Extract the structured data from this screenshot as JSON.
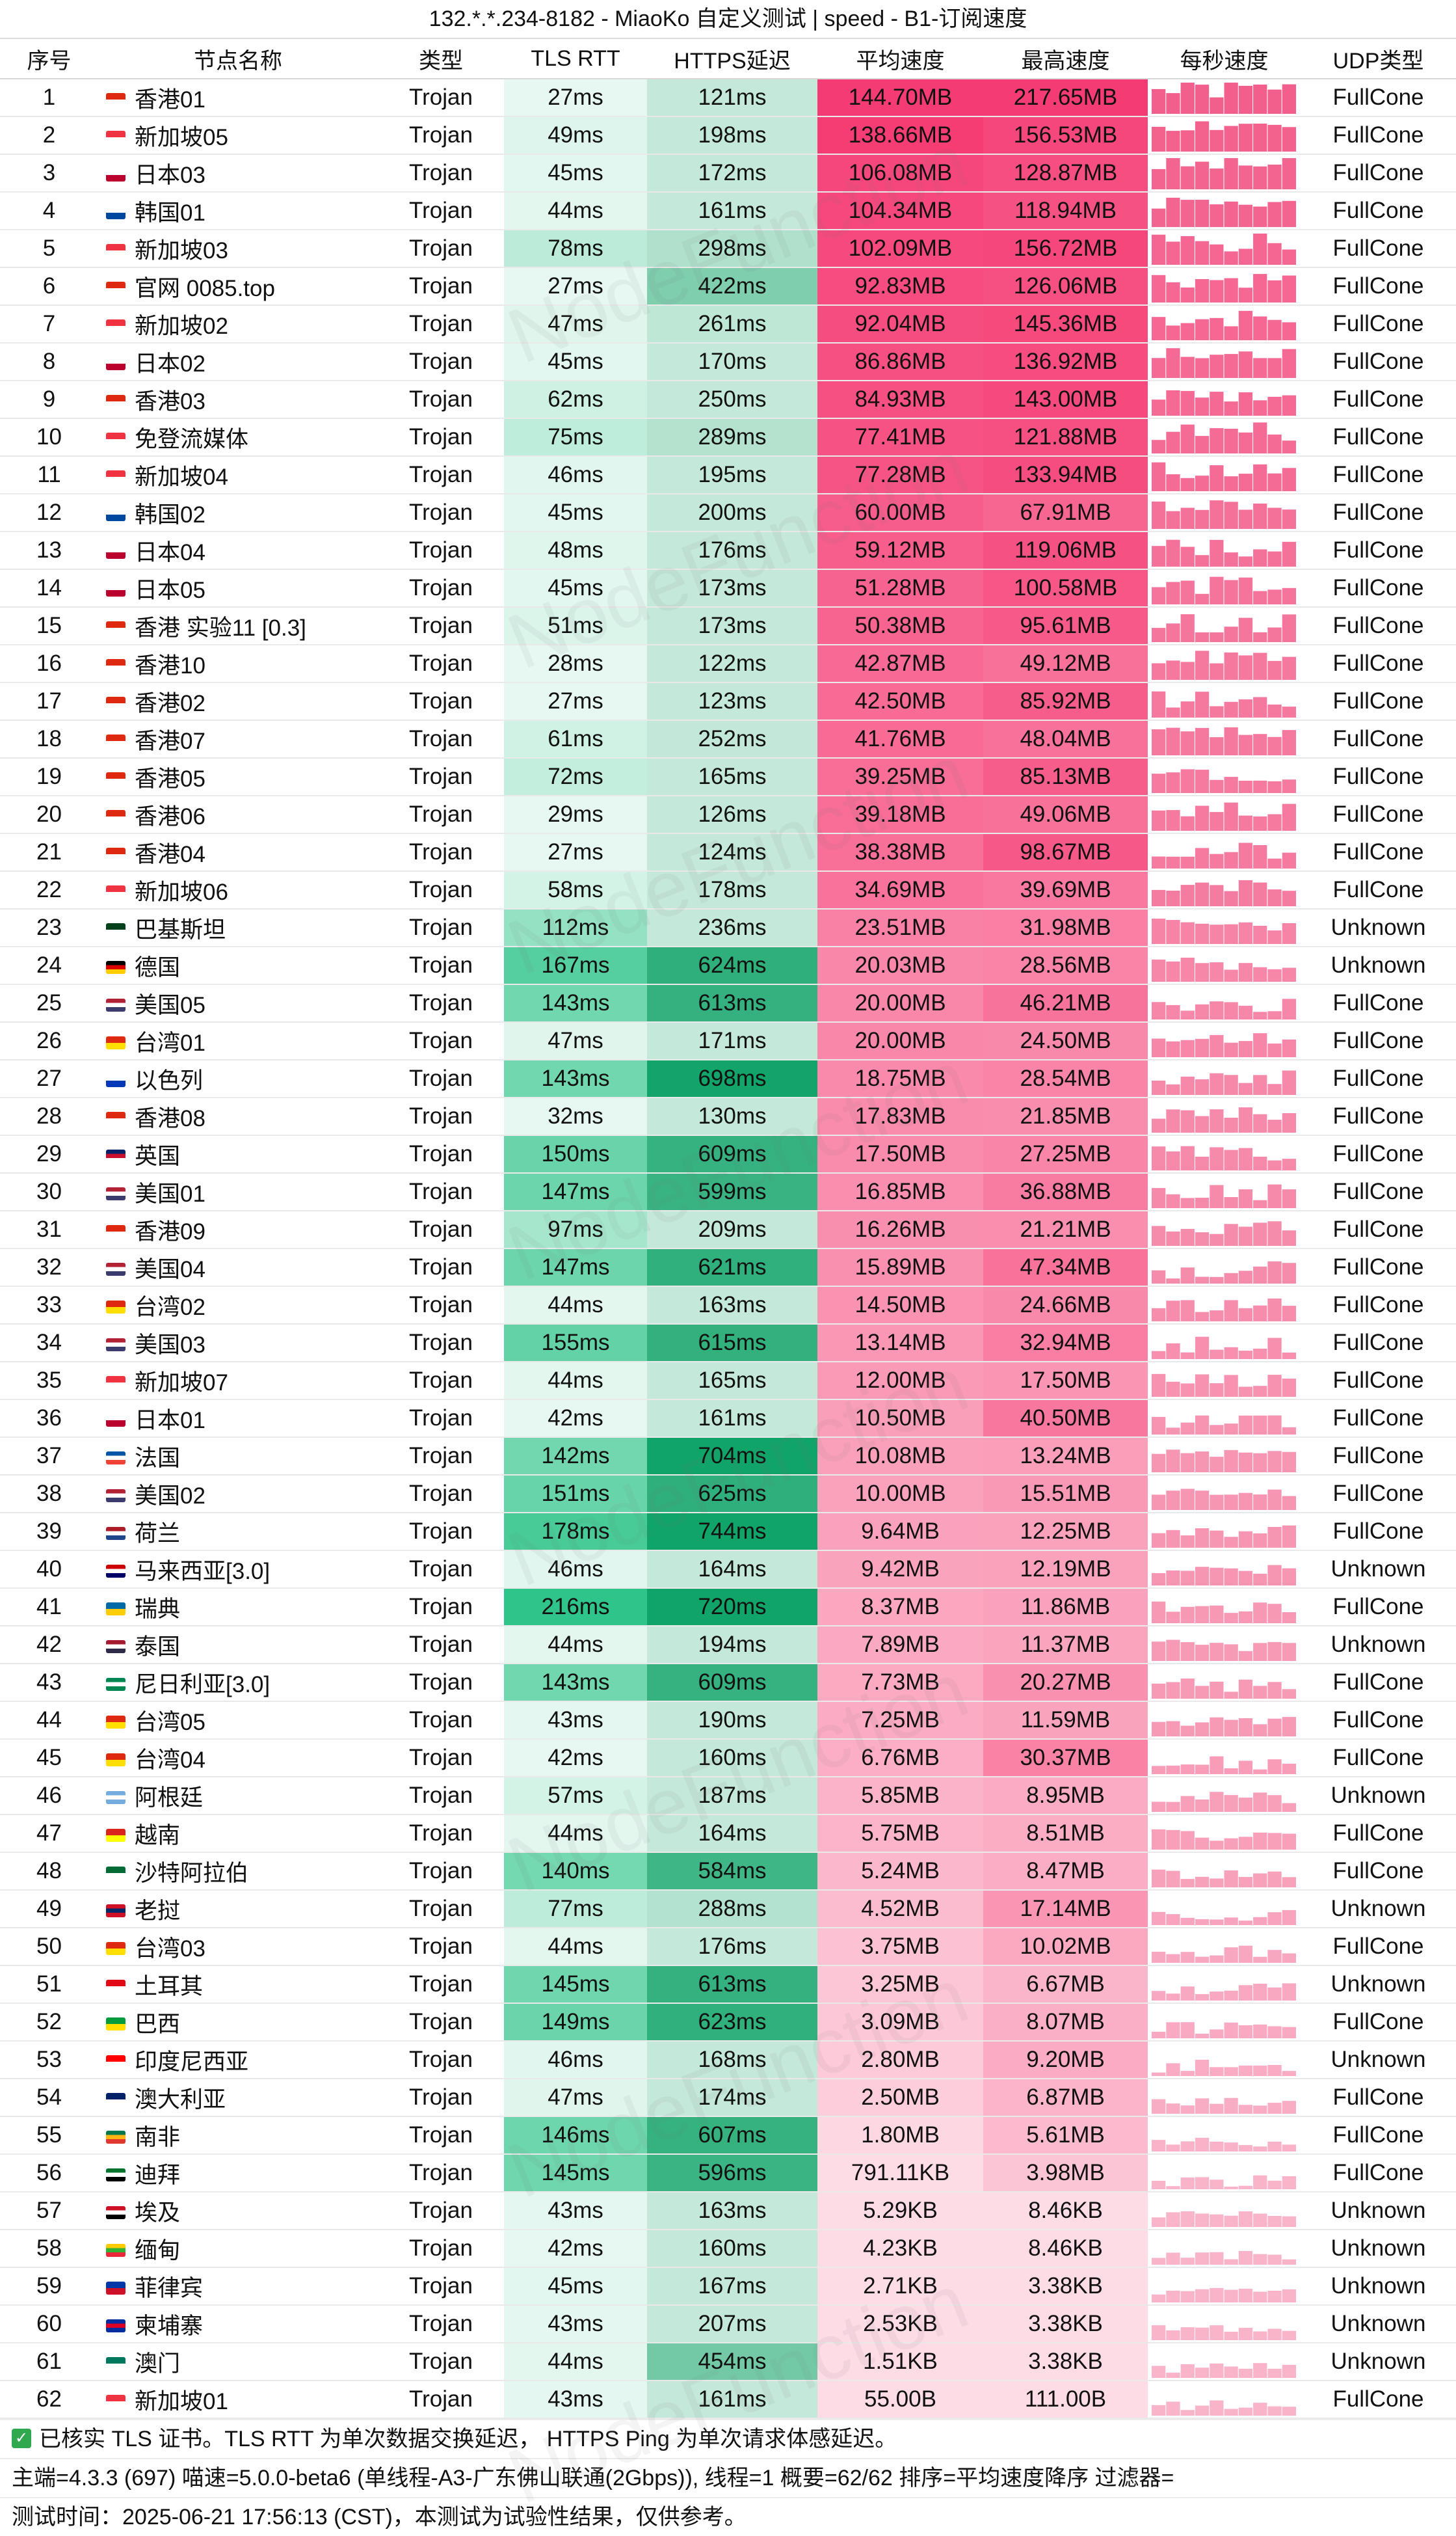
{
  "title": "132.*.*.234-8182 - MiaoKo 自定义测试 | speed - B1-订阅速度",
  "columns": [
    "序号",
    "节点名称",
    "类型",
    "TLS RTT",
    "HTTPS延迟",
    "平均速度",
    "最高速度",
    "每秒速度",
    "UDP类型"
  ],
  "watermark": "NodeFunction",
  "colors": {
    "rtt_green": "#2fc489",
    "delay_green": "#11a468",
    "speed_pink": "#f53b73",
    "spark_pink": "#f35f8c"
  },
  "rows": [
    {
      "no": "1",
      "flag": "hk",
      "name": "香港01",
      "type": "Trojan",
      "rtt": "27ms",
      "delay": "121ms",
      "avg": "144.70MB",
      "max": "217.65MB",
      "udp": "FullCone",
      "rtt_ms": 27,
      "delay_ms": 121,
      "avg_mb": 144.7,
      "max_mb": 217.65
    },
    {
      "no": "2",
      "flag": "sg",
      "name": "新加坡05",
      "type": "Trojan",
      "rtt": "49ms",
      "delay": "198ms",
      "avg": "138.66MB",
      "max": "156.53MB",
      "udp": "FullCone",
      "rtt_ms": 49,
      "delay_ms": 198,
      "avg_mb": 138.66,
      "max_mb": 156.53
    },
    {
      "no": "3",
      "flag": "jp",
      "name": "日本03",
      "type": "Trojan",
      "rtt": "45ms",
      "delay": "172ms",
      "avg": "106.08MB",
      "max": "128.87MB",
      "udp": "FullCone",
      "rtt_ms": 45,
      "delay_ms": 172,
      "avg_mb": 106.08,
      "max_mb": 128.87
    },
    {
      "no": "4",
      "flag": "kr",
      "name": "韩国01",
      "type": "Trojan",
      "rtt": "44ms",
      "delay": "161ms",
      "avg": "104.34MB",
      "max": "118.94MB",
      "udp": "FullCone",
      "rtt_ms": 44,
      "delay_ms": 161,
      "avg_mb": 104.34,
      "max_mb": 118.94
    },
    {
      "no": "5",
      "flag": "sg",
      "name": "新加坡03",
      "type": "Trojan",
      "rtt": "78ms",
      "delay": "298ms",
      "avg": "102.09MB",
      "max": "156.72MB",
      "udp": "FullCone",
      "rtt_ms": 78,
      "delay_ms": 298,
      "avg_mb": 102.09,
      "max_mb": 156.72
    },
    {
      "no": "6",
      "flag": "hk",
      "name": "官网 0085.top",
      "type": "Trojan",
      "rtt": "27ms",
      "delay": "422ms",
      "avg": "92.83MB",
      "max": "126.06MB",
      "udp": "FullCone",
      "rtt_ms": 27,
      "delay_ms": 422,
      "avg_mb": 92.83,
      "max_mb": 126.06
    },
    {
      "no": "7",
      "flag": "sg",
      "name": "新加坡02",
      "type": "Trojan",
      "rtt": "47ms",
      "delay": "261ms",
      "avg": "92.04MB",
      "max": "145.36MB",
      "udp": "FullCone",
      "rtt_ms": 47,
      "delay_ms": 261,
      "avg_mb": 92.04,
      "max_mb": 145.36
    },
    {
      "no": "8",
      "flag": "jp",
      "name": "日本02",
      "type": "Trojan",
      "rtt": "45ms",
      "delay": "170ms",
      "avg": "86.86MB",
      "max": "136.92MB",
      "udp": "FullCone",
      "rtt_ms": 45,
      "delay_ms": 170,
      "avg_mb": 86.86,
      "max_mb": 136.92
    },
    {
      "no": "9",
      "flag": "hk",
      "name": "香港03",
      "type": "Trojan",
      "rtt": "62ms",
      "delay": "250ms",
      "avg": "84.93MB",
      "max": "143.00MB",
      "udp": "FullCone",
      "rtt_ms": 62,
      "delay_ms": 250,
      "avg_mb": 84.93,
      "max_mb": 143.0
    },
    {
      "no": "10",
      "flag": "sg",
      "name": "免登流媒体",
      "type": "Trojan",
      "rtt": "75ms",
      "delay": "289ms",
      "avg": "77.41MB",
      "max": "121.88MB",
      "udp": "FullCone",
      "rtt_ms": 75,
      "delay_ms": 289,
      "avg_mb": 77.41,
      "max_mb": 121.88
    },
    {
      "no": "11",
      "flag": "sg",
      "name": "新加坡04",
      "type": "Trojan",
      "rtt": "46ms",
      "delay": "195ms",
      "avg": "77.28MB",
      "max": "133.94MB",
      "udp": "FullCone",
      "rtt_ms": 46,
      "delay_ms": 195,
      "avg_mb": 77.28,
      "max_mb": 133.94
    },
    {
      "no": "12",
      "flag": "kr",
      "name": "韩国02",
      "type": "Trojan",
      "rtt": "45ms",
      "delay": "200ms",
      "avg": "60.00MB",
      "max": "67.91MB",
      "udp": "FullCone",
      "rtt_ms": 45,
      "delay_ms": 200,
      "avg_mb": 60.0,
      "max_mb": 67.91
    },
    {
      "no": "13",
      "flag": "jp",
      "name": "日本04",
      "type": "Trojan",
      "rtt": "48ms",
      "delay": "176ms",
      "avg": "59.12MB",
      "max": "119.06MB",
      "udp": "FullCone",
      "rtt_ms": 48,
      "delay_ms": 176,
      "avg_mb": 59.12,
      "max_mb": 119.06
    },
    {
      "no": "14",
      "flag": "jp",
      "name": "日本05",
      "type": "Trojan",
      "rtt": "45ms",
      "delay": "173ms",
      "avg": "51.28MB",
      "max": "100.58MB",
      "udp": "FullCone",
      "rtt_ms": 45,
      "delay_ms": 173,
      "avg_mb": 51.28,
      "max_mb": 100.58
    },
    {
      "no": "15",
      "flag": "hk",
      "name": "香港 实验11 [0.3]",
      "type": "Trojan",
      "rtt": "51ms",
      "delay": "173ms",
      "avg": "50.38MB",
      "max": "95.61MB",
      "udp": "FullCone",
      "rtt_ms": 51,
      "delay_ms": 173,
      "avg_mb": 50.38,
      "max_mb": 95.61
    },
    {
      "no": "16",
      "flag": "hk",
      "name": "香港10",
      "type": "Trojan",
      "rtt": "28ms",
      "delay": "122ms",
      "avg": "42.87MB",
      "max": "49.12MB",
      "udp": "FullCone",
      "rtt_ms": 28,
      "delay_ms": 122,
      "avg_mb": 42.87,
      "max_mb": 49.12
    },
    {
      "no": "17",
      "flag": "hk",
      "name": "香港02",
      "type": "Trojan",
      "rtt": "27ms",
      "delay": "123ms",
      "avg": "42.50MB",
      "max": "85.92MB",
      "udp": "FullCone",
      "rtt_ms": 27,
      "delay_ms": 123,
      "avg_mb": 42.5,
      "max_mb": 85.92
    },
    {
      "no": "18",
      "flag": "hk",
      "name": "香港07",
      "type": "Trojan",
      "rtt": "61ms",
      "delay": "252ms",
      "avg": "41.76MB",
      "max": "48.04MB",
      "udp": "FullCone",
      "rtt_ms": 61,
      "delay_ms": 252,
      "avg_mb": 41.76,
      "max_mb": 48.04
    },
    {
      "no": "19",
      "flag": "hk",
      "name": "香港05",
      "type": "Trojan",
      "rtt": "72ms",
      "delay": "165ms",
      "avg": "39.25MB",
      "max": "85.13MB",
      "udp": "FullCone",
      "rtt_ms": 72,
      "delay_ms": 165,
      "avg_mb": 39.25,
      "max_mb": 85.13
    },
    {
      "no": "20",
      "flag": "hk",
      "name": "香港06",
      "type": "Trojan",
      "rtt": "29ms",
      "delay": "126ms",
      "avg": "39.18MB",
      "max": "49.06MB",
      "udp": "FullCone",
      "rtt_ms": 29,
      "delay_ms": 126,
      "avg_mb": 39.18,
      "max_mb": 49.06
    },
    {
      "no": "21",
      "flag": "hk",
      "name": "香港04",
      "type": "Trojan",
      "rtt": "27ms",
      "delay": "124ms",
      "avg": "38.38MB",
      "max": "98.67MB",
      "udp": "FullCone",
      "rtt_ms": 27,
      "delay_ms": 124,
      "avg_mb": 38.38,
      "max_mb": 98.67
    },
    {
      "no": "22",
      "flag": "sg",
      "name": "新加坡06",
      "type": "Trojan",
      "rtt": "58ms",
      "delay": "178ms",
      "avg": "34.69MB",
      "max": "39.69MB",
      "udp": "FullCone",
      "rtt_ms": 58,
      "delay_ms": 178,
      "avg_mb": 34.69,
      "max_mb": 39.69
    },
    {
      "no": "23",
      "flag": "pk",
      "name": "巴基斯坦",
      "type": "Trojan",
      "rtt": "112ms",
      "delay": "236ms",
      "avg": "23.51MB",
      "max": "31.98MB",
      "udp": "Unknown",
      "rtt_ms": 112,
      "delay_ms": 236,
      "avg_mb": 23.51,
      "max_mb": 31.98
    },
    {
      "no": "24",
      "flag": "de",
      "name": "德国",
      "type": "Trojan",
      "rtt": "167ms",
      "delay": "624ms",
      "avg": "20.03MB",
      "max": "28.56MB",
      "udp": "Unknown",
      "rtt_ms": 167,
      "delay_ms": 624,
      "avg_mb": 20.03,
      "max_mb": 28.56
    },
    {
      "no": "25",
      "flag": "us",
      "name": "美国05",
      "type": "Trojan",
      "rtt": "143ms",
      "delay": "613ms",
      "avg": "20.00MB",
      "max": "46.21MB",
      "udp": "FullCone",
      "rtt_ms": 143,
      "delay_ms": 613,
      "avg_mb": 20.0,
      "max_mb": 46.21
    },
    {
      "no": "26",
      "flag": "cn",
      "name": "台湾01",
      "type": "Trojan",
      "rtt": "47ms",
      "delay": "171ms",
      "avg": "20.00MB",
      "max": "24.50MB",
      "udp": "FullCone",
      "rtt_ms": 47,
      "delay_ms": 171,
      "avg_mb": 20.0,
      "max_mb": 24.5
    },
    {
      "no": "27",
      "flag": "il",
      "name": "以色列",
      "type": "Trojan",
      "rtt": "143ms",
      "delay": "698ms",
      "avg": "18.75MB",
      "max": "28.54MB",
      "udp": "FullCone",
      "rtt_ms": 143,
      "delay_ms": 698,
      "avg_mb": 18.75,
      "max_mb": 28.54
    },
    {
      "no": "28",
      "flag": "hk",
      "name": "香港08",
      "type": "Trojan",
      "rtt": "32ms",
      "delay": "130ms",
      "avg": "17.83MB",
      "max": "21.85MB",
      "udp": "FullCone",
      "rtt_ms": 32,
      "delay_ms": 130,
      "avg_mb": 17.83,
      "max_mb": 21.85
    },
    {
      "no": "29",
      "flag": "gb",
      "name": "英国",
      "type": "Trojan",
      "rtt": "150ms",
      "delay": "609ms",
      "avg": "17.50MB",
      "max": "27.25MB",
      "udp": "FullCone",
      "rtt_ms": 150,
      "delay_ms": 609,
      "avg_mb": 17.5,
      "max_mb": 27.25
    },
    {
      "no": "30",
      "flag": "us",
      "name": "美国01",
      "type": "Trojan",
      "rtt": "147ms",
      "delay": "599ms",
      "avg": "16.85MB",
      "max": "36.88MB",
      "udp": "FullCone",
      "rtt_ms": 147,
      "delay_ms": 599,
      "avg_mb": 16.85,
      "max_mb": 36.88
    },
    {
      "no": "31",
      "flag": "hk",
      "name": "香港09",
      "type": "Trojan",
      "rtt": "97ms",
      "delay": "209ms",
      "avg": "16.26MB",
      "max": "21.21MB",
      "udp": "FullCone",
      "rtt_ms": 97,
      "delay_ms": 209,
      "avg_mb": 16.26,
      "max_mb": 21.21
    },
    {
      "no": "32",
      "flag": "us",
      "name": "美国04",
      "type": "Trojan",
      "rtt": "147ms",
      "delay": "621ms",
      "avg": "15.89MB",
      "max": "47.34MB",
      "udp": "FullCone",
      "rtt_ms": 147,
      "delay_ms": 621,
      "avg_mb": 15.89,
      "max_mb": 47.34
    },
    {
      "no": "33",
      "flag": "cn",
      "name": "台湾02",
      "type": "Trojan",
      "rtt": "44ms",
      "delay": "163ms",
      "avg": "14.50MB",
      "max": "24.66MB",
      "udp": "FullCone",
      "rtt_ms": 44,
      "delay_ms": 163,
      "avg_mb": 14.5,
      "max_mb": 24.66
    },
    {
      "no": "34",
      "flag": "us",
      "name": "美国03",
      "type": "Trojan",
      "rtt": "155ms",
      "delay": "615ms",
      "avg": "13.14MB",
      "max": "32.94MB",
      "udp": "FullCone",
      "rtt_ms": 155,
      "delay_ms": 615,
      "avg_mb": 13.14,
      "max_mb": 32.94
    },
    {
      "no": "35",
      "flag": "sg",
      "name": "新加坡07",
      "type": "Trojan",
      "rtt": "44ms",
      "delay": "165ms",
      "avg": "12.00MB",
      "max": "17.50MB",
      "udp": "FullCone",
      "rtt_ms": 44,
      "delay_ms": 165,
      "avg_mb": 12.0,
      "max_mb": 17.5
    },
    {
      "no": "36",
      "flag": "jp",
      "name": "日本01",
      "type": "Trojan",
      "rtt": "42ms",
      "delay": "161ms",
      "avg": "10.50MB",
      "max": "40.50MB",
      "udp": "FullCone",
      "rtt_ms": 42,
      "delay_ms": 161,
      "avg_mb": 10.5,
      "max_mb": 40.5
    },
    {
      "no": "37",
      "flag": "fr",
      "name": "法国",
      "type": "Trojan",
      "rtt": "142ms",
      "delay": "704ms",
      "avg": "10.08MB",
      "max": "13.24MB",
      "udp": "FullCone",
      "rtt_ms": 142,
      "delay_ms": 704,
      "avg_mb": 10.08,
      "max_mb": 13.24
    },
    {
      "no": "38",
      "flag": "us",
      "name": "美国02",
      "type": "Trojan",
      "rtt": "151ms",
      "delay": "625ms",
      "avg": "10.00MB",
      "max": "15.51MB",
      "udp": "FullCone",
      "rtt_ms": 151,
      "delay_ms": 625,
      "avg_mb": 10.0,
      "max_mb": 15.51
    },
    {
      "no": "39",
      "flag": "nl",
      "name": "荷兰",
      "type": "Trojan",
      "rtt": "178ms",
      "delay": "744ms",
      "avg": "9.64MB",
      "max": "12.25MB",
      "udp": "FullCone",
      "rtt_ms": 178,
      "delay_ms": 744,
      "avg_mb": 9.64,
      "max_mb": 12.25
    },
    {
      "no": "40",
      "flag": "my",
      "name": "马来西亚[3.0]",
      "type": "Trojan",
      "rtt": "46ms",
      "delay": "164ms",
      "avg": "9.42MB",
      "max": "12.19MB",
      "udp": "Unknown",
      "rtt_ms": 46,
      "delay_ms": 164,
      "avg_mb": 9.42,
      "max_mb": 12.19
    },
    {
      "no": "41",
      "flag": "se",
      "name": "瑞典",
      "type": "Trojan",
      "rtt": "216ms",
      "delay": "720ms",
      "avg": "8.37MB",
      "max": "11.86MB",
      "udp": "FullCone",
      "rtt_ms": 216,
      "delay_ms": 720,
      "avg_mb": 8.37,
      "max_mb": 11.86
    },
    {
      "no": "42",
      "flag": "th",
      "name": "泰国",
      "type": "Trojan",
      "rtt": "44ms",
      "delay": "194ms",
      "avg": "7.89MB",
      "max": "11.37MB",
      "udp": "Unknown",
      "rtt_ms": 44,
      "delay_ms": 194,
      "avg_mb": 7.89,
      "max_mb": 11.37
    },
    {
      "no": "43",
      "flag": "ng",
      "name": "尼日利亚[3.0]",
      "type": "Trojan",
      "rtt": "143ms",
      "delay": "609ms",
      "avg": "7.73MB",
      "max": "20.27MB",
      "udp": "FullCone",
      "rtt_ms": 143,
      "delay_ms": 609,
      "avg_mb": 7.73,
      "max_mb": 20.27
    },
    {
      "no": "44",
      "flag": "cn",
      "name": "台湾05",
      "type": "Trojan",
      "rtt": "43ms",
      "delay": "190ms",
      "avg": "7.25MB",
      "max": "11.59MB",
      "udp": "FullCone",
      "rtt_ms": 43,
      "delay_ms": 190,
      "avg_mb": 7.25,
      "max_mb": 11.59
    },
    {
      "no": "45",
      "flag": "cn",
      "name": "台湾04",
      "type": "Trojan",
      "rtt": "42ms",
      "delay": "160ms",
      "avg": "6.76MB",
      "max": "30.37MB",
      "udp": "FullCone",
      "rtt_ms": 42,
      "delay_ms": 160,
      "avg_mb": 6.76,
      "max_mb": 30.37
    },
    {
      "no": "46",
      "flag": "ar",
      "name": "阿根廷",
      "type": "Trojan",
      "rtt": "57ms",
      "delay": "187ms",
      "avg": "5.85MB",
      "max": "8.95MB",
      "udp": "Unknown",
      "rtt_ms": 57,
      "delay_ms": 187,
      "avg_mb": 5.85,
      "max_mb": 8.95
    },
    {
      "no": "47",
      "flag": "vn",
      "name": "越南",
      "type": "Trojan",
      "rtt": "44ms",
      "delay": "164ms",
      "avg": "5.75MB",
      "max": "8.51MB",
      "udp": "FullCone",
      "rtt_ms": 44,
      "delay_ms": 164,
      "avg_mb": 5.75,
      "max_mb": 8.51
    },
    {
      "no": "48",
      "flag": "sa",
      "name": "沙特阿拉伯",
      "type": "Trojan",
      "rtt": "140ms",
      "delay": "584ms",
      "avg": "5.24MB",
      "max": "8.47MB",
      "udp": "FullCone",
      "rtt_ms": 140,
      "delay_ms": 584,
      "avg_mb": 5.24,
      "max_mb": 8.47
    },
    {
      "no": "49",
      "flag": "la",
      "name": "老挝",
      "type": "Trojan",
      "rtt": "77ms",
      "delay": "288ms",
      "avg": "4.52MB",
      "max": "17.14MB",
      "udp": "Unknown",
      "rtt_ms": 77,
      "delay_ms": 288,
      "avg_mb": 4.52,
      "max_mb": 17.14
    },
    {
      "no": "50",
      "flag": "cn",
      "name": "台湾03",
      "type": "Trojan",
      "rtt": "44ms",
      "delay": "176ms",
      "avg": "3.75MB",
      "max": "10.02MB",
      "udp": "FullCone",
      "rtt_ms": 44,
      "delay_ms": 176,
      "avg_mb": 3.75,
      "max_mb": 10.02
    },
    {
      "no": "51",
      "flag": "tr",
      "name": "土耳其",
      "type": "Trojan",
      "rtt": "145ms",
      "delay": "613ms",
      "avg": "3.25MB",
      "max": "6.67MB",
      "udp": "Unknown",
      "rtt_ms": 145,
      "delay_ms": 613,
      "avg_mb": 3.25,
      "max_mb": 6.67
    },
    {
      "no": "52",
      "flag": "br",
      "name": "巴西",
      "type": "Trojan",
      "rtt": "149ms",
      "delay": "623ms",
      "avg": "3.09MB",
      "max": "8.07MB",
      "udp": "FullCone",
      "rtt_ms": 149,
      "delay_ms": 623,
      "avg_mb": 3.09,
      "max_mb": 8.07
    },
    {
      "no": "53",
      "flag": "id",
      "name": "印度尼西亚",
      "type": "Trojan",
      "rtt": "46ms",
      "delay": "168ms",
      "avg": "2.80MB",
      "max": "9.20MB",
      "udp": "Unknown",
      "rtt_ms": 46,
      "delay_ms": 168,
      "avg_mb": 2.8,
      "max_mb": 9.2
    },
    {
      "no": "54",
      "flag": "au",
      "name": "澳大利亚",
      "type": "Trojan",
      "rtt": "47ms",
      "delay": "174ms",
      "avg": "2.50MB",
      "max": "6.87MB",
      "udp": "FullCone",
      "rtt_ms": 47,
      "delay_ms": 174,
      "avg_mb": 2.5,
      "max_mb": 6.87
    },
    {
      "no": "55",
      "flag": "za",
      "name": "南非",
      "type": "Trojan",
      "rtt": "146ms",
      "delay": "607ms",
      "avg": "1.80MB",
      "max": "5.61MB",
      "udp": "FullCone",
      "rtt_ms": 146,
      "delay_ms": 607,
      "avg_mb": 1.8,
      "max_mb": 5.61
    },
    {
      "no": "56",
      "flag": "ae",
      "name": "迪拜",
      "type": "Trojan",
      "rtt": "145ms",
      "delay": "596ms",
      "avg": "791.11KB",
      "max": "3.98MB",
      "udp": "FullCone",
      "rtt_ms": 145,
      "delay_ms": 596,
      "avg_mb": 0.773,
      "max_mb": 3.98
    },
    {
      "no": "57",
      "flag": "eg",
      "name": "埃及",
      "type": "Trojan",
      "rtt": "43ms",
      "delay": "163ms",
      "avg": "5.29KB",
      "max": "8.46KB",
      "udp": "Unknown",
      "rtt_ms": 43,
      "delay_ms": 163,
      "avg_mb": 0.0052,
      "max_mb": 0.0083
    },
    {
      "no": "58",
      "flag": "mm",
      "name": "缅甸",
      "type": "Trojan",
      "rtt": "42ms",
      "delay": "160ms",
      "avg": "4.23KB",
      "max": "8.46KB",
      "udp": "Unknown",
      "rtt_ms": 42,
      "delay_ms": 160,
      "avg_mb": 0.0041,
      "max_mb": 0.0083
    },
    {
      "no": "59",
      "flag": "ph",
      "name": "菲律宾",
      "type": "Trojan",
      "rtt": "45ms",
      "delay": "167ms",
      "avg": "2.71KB",
      "max": "3.38KB",
      "udp": "Unknown",
      "rtt_ms": 45,
      "delay_ms": 167,
      "avg_mb": 0.0026,
      "max_mb": 0.0033
    },
    {
      "no": "60",
      "flag": "kh",
      "name": "柬埔寨",
      "type": "Trojan",
      "rtt": "43ms",
      "delay": "207ms",
      "avg": "2.53KB",
      "max": "3.38KB",
      "udp": "Unknown",
      "rtt_ms": 43,
      "delay_ms": 207,
      "avg_mb": 0.0025,
      "max_mb": 0.0033
    },
    {
      "no": "61",
      "flag": "mo",
      "name": "澳门",
      "type": "Trojan",
      "rtt": "44ms",
      "delay": "454ms",
      "avg": "1.51KB",
      "max": "3.38KB",
      "udp": "Unknown",
      "rtt_ms": 44,
      "delay_ms": 454,
      "avg_mb": 0.0015,
      "max_mb": 0.0033
    },
    {
      "no": "62",
      "flag": "sg",
      "name": "新加坡01",
      "type": "Trojan",
      "rtt": "43ms",
      "delay": "161ms",
      "avg": "55.00B",
      "max": "111.00B",
      "udp": "FullCone",
      "rtt_ms": 43,
      "delay_ms": 161,
      "avg_mb": 5e-05,
      "max_mb": 0.0001
    }
  ],
  "footer": {
    "line1": "已核实 TLS 证书。TLS RTT 为单次数据交换延迟， HTTPS Ping 为单次请求体感延迟。",
    "line2": "主端=4.3.3 (697) 喵速=5.0.0-beta6 (单线程-A3-广东佛山联通(2Gbps)), 线程=1 概要=62/62 排序=平均速度降序 过滤器=",
    "line3": "测试时间：2025-06-21 17:56:13 (CST)，本测试为试验性结果，仅供参考。"
  }
}
